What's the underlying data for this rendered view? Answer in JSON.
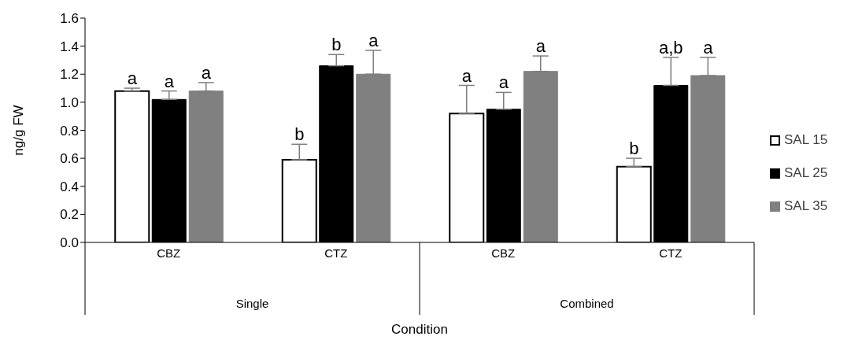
{
  "chart_data": {
    "type": "bar",
    "xlabel": "Condition",
    "ylabel": "ng/g FW",
    "categories": [
      "CBZ",
      "CTZ",
      "CBZ",
      "CTZ"
    ],
    "annotations": [
      "Single",
      "Combined"
    ],
    "series": [
      {
        "name": "SAL 15",
        "color": "#ffffff",
        "values": [
          1.08,
          0.59,
          0.92,
          0.54
        ],
        "errors": [
          [
            1.08,
            1.1
          ],
          [
            0.59,
            0.7
          ],
          [
            0.92,
            1.12
          ],
          [
            0.54,
            0.6
          ]
        ],
        "value_labels": [
          "a",
          "b",
          "a",
          "b"
        ]
      },
      {
        "name": "SAL 25",
        "color": "#000000",
        "values": [
          1.02,
          1.26,
          0.95,
          1.12
        ],
        "errors": [
          [
            1.02,
            1.08
          ],
          [
            1.26,
            1.34
          ],
          [
            0.95,
            1.07
          ],
          [
            1.12,
            1.32
          ]
        ],
        "value_labels": [
          "a",
          "b",
          "a",
          "a,b"
        ]
      },
      {
        "name": "SAL 35",
        "color": "#808080",
        "values": [
          1.08,
          1.2,
          1.22,
          1.19
        ],
        "errors": [
          [
            1.08,
            1.14
          ],
          [
            1.2,
            1.37
          ],
          [
            1.22,
            1.33
          ],
          [
            1.19,
            1.32
          ]
        ],
        "value_labels": [
          "a",
          "a",
          "a",
          "a"
        ]
      }
    ],
    "ylim": [
      0,
      1.6
    ],
    "yticks": [
      {
        "value": 0,
        "label": "0.0"
      },
      {
        "value": 0.2,
        "label": "0.2"
      },
      {
        "value": 0.4,
        "label": "0.4"
      },
      {
        "value": 0.6,
        "label": "0.6"
      },
      {
        "value": 0.8,
        "label": "0.8"
      },
      {
        "value": 1,
        "label": "1.0"
      },
      {
        "value": 1.2,
        "label": "1.2"
      },
      {
        "value": 1.4,
        "label": "1.4"
      },
      {
        "value": 1.6,
        "label": "1.6"
      }
    ],
    "grid": false,
    "legend": "right"
  }
}
